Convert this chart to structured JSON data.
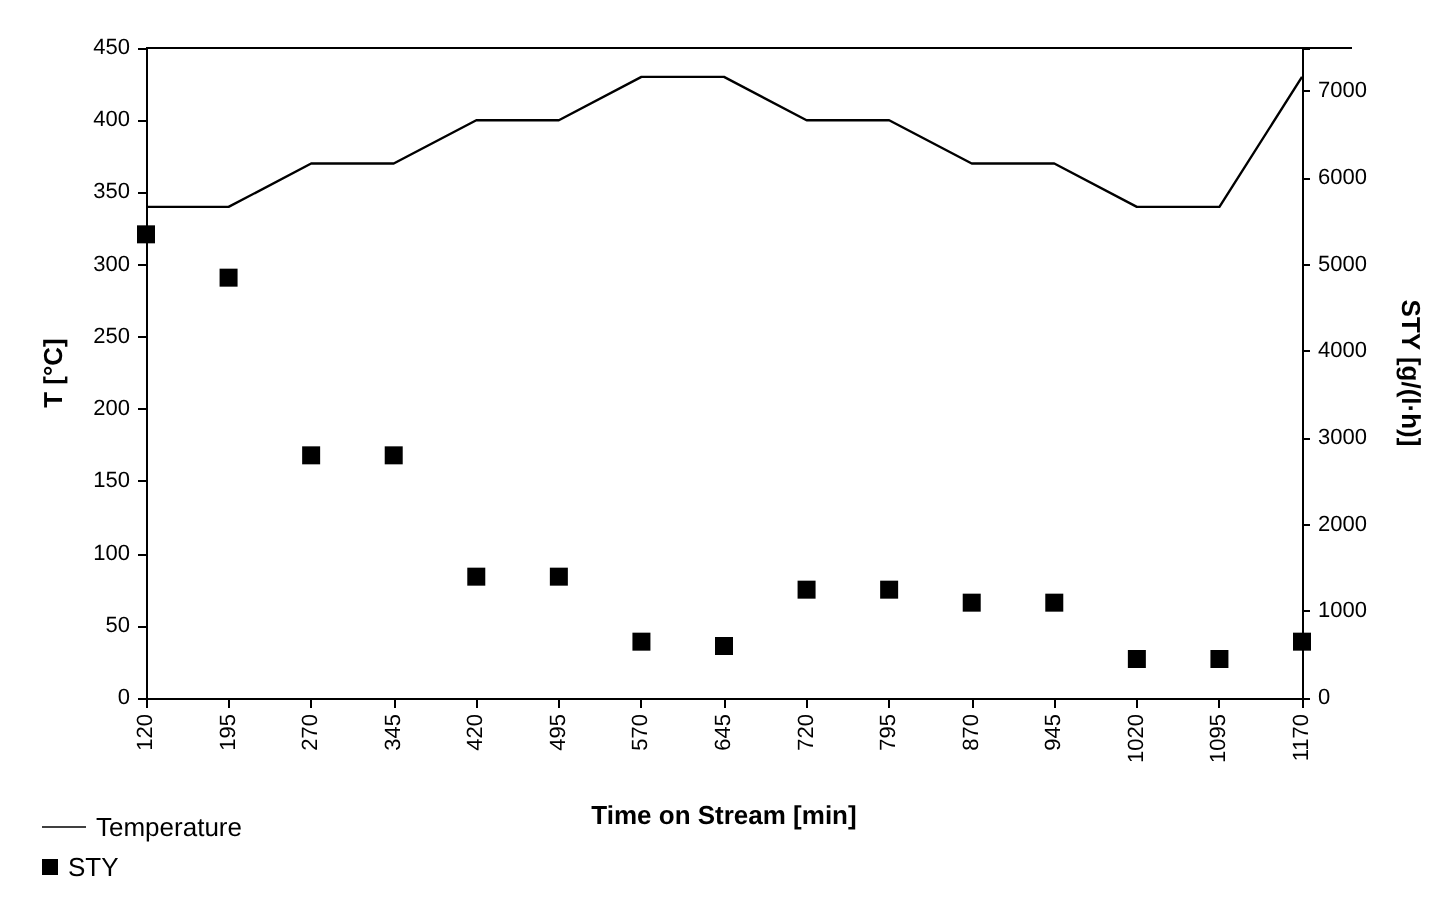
{
  "chart_data": {
    "type": "line",
    "xlabel": "Time on Stream [min]",
    "ylabel": "T [°C]",
    "y2label": "STY [g/(l·h)]",
    "categories": [
      "120",
      "195",
      "270",
      "345",
      "420",
      "495",
      "570",
      "645",
      "720",
      "795",
      "870",
      "945",
      "1020",
      "1095",
      "1170"
    ],
    "ylim": [
      0,
      450
    ],
    "yticks": [
      0,
      50,
      100,
      150,
      200,
      250,
      300,
      350,
      400,
      450
    ],
    "y2lim": [
      0,
      7500
    ],
    "y2ticks": [
      0,
      1000,
      2000,
      3000,
      4000,
      5000,
      6000,
      7000,
      {
        "value": 7500,
        "label": null
      }
    ],
    "grid": false,
    "legend": "bottom left",
    "series": [
      {
        "name": "Temperature",
        "color": "#000000",
        "marker": "none",
        "line_style": "solid",
        "values": [
          340,
          340,
          370,
          370,
          400,
          400,
          430,
          430,
          400,
          400,
          370,
          370,
          340,
          340,
          430
        ]
      },
      {
        "name": "STY",
        "type": "scatter",
        "axis": "y2",
        "color": "#000000",
        "marker": "square",
        "values": [
          5350,
          4850,
          2800,
          2800,
          1400,
          1400,
          650,
          600,
          1250,
          1250,
          1100,
          1100,
          450,
          450,
          650
        ]
      }
    ]
  }
}
